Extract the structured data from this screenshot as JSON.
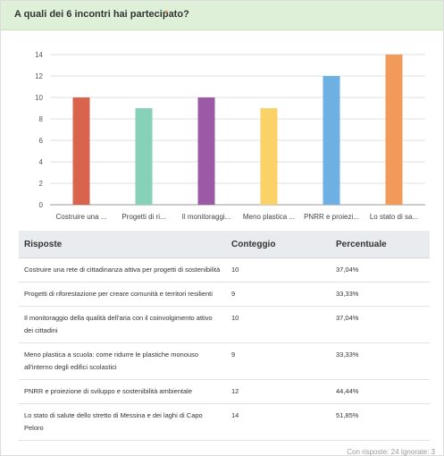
{
  "question": {
    "title": "A quali dei 6 incontri hai partecipato?",
    "required_mark": "*"
  },
  "chart_data": {
    "type": "bar",
    "categories": [
      "Costruire una ...",
      "Progetti di ri...",
      "Il monitoraggi...",
      "Meno plastica ...",
      "PNRR e proiezi...",
      "Lo stato di sa..."
    ],
    "values": [
      10,
      9,
      10,
      9,
      12,
      14
    ],
    "colors": [
      "#d9644e",
      "#86d1b8",
      "#9b59a6",
      "#fbd267",
      "#6fb0e3",
      "#f29a5a"
    ],
    "ylim": [
      0,
      14
    ],
    "yticks": [
      0,
      2,
      4,
      6,
      8,
      10,
      12,
      14
    ],
    "grid": true
  },
  "table": {
    "headers": [
      "Risposte",
      "Conteggio",
      "Percentuale"
    ],
    "rows": [
      {
        "answer": "Costruire una rete di cittadinanza attiva per progetti di sostenibilità",
        "count": "10",
        "percent": "37,04%"
      },
      {
        "answer": "Progetti di riforestazione per creare comunità e territori resilienti",
        "count": "9",
        "percent": "33,33%"
      },
      {
        "answer": "Il monitoraggio della qualità dell'aria con il coinvolgimento attivo dei cittadini",
        "count": "10",
        "percent": "37,04%"
      },
      {
        "answer": "Meno plastica a scuola: come ridurre le plastiche monouso all'interno degli edifici scolastici",
        "count": "9",
        "percent": "33,33%"
      },
      {
        "answer": "PNRR e proiezione di sviluppo e sostenibilità ambientale",
        "count": "12",
        "percent": "44,44%"
      },
      {
        "answer": "Lo stato di salute dello stretto di Messina e dei laghi di Capo Peloro",
        "count": "14",
        "percent": "51,85%"
      }
    ]
  },
  "footer": {
    "text": "Con risposte: 24   Ignorate: 3"
  }
}
